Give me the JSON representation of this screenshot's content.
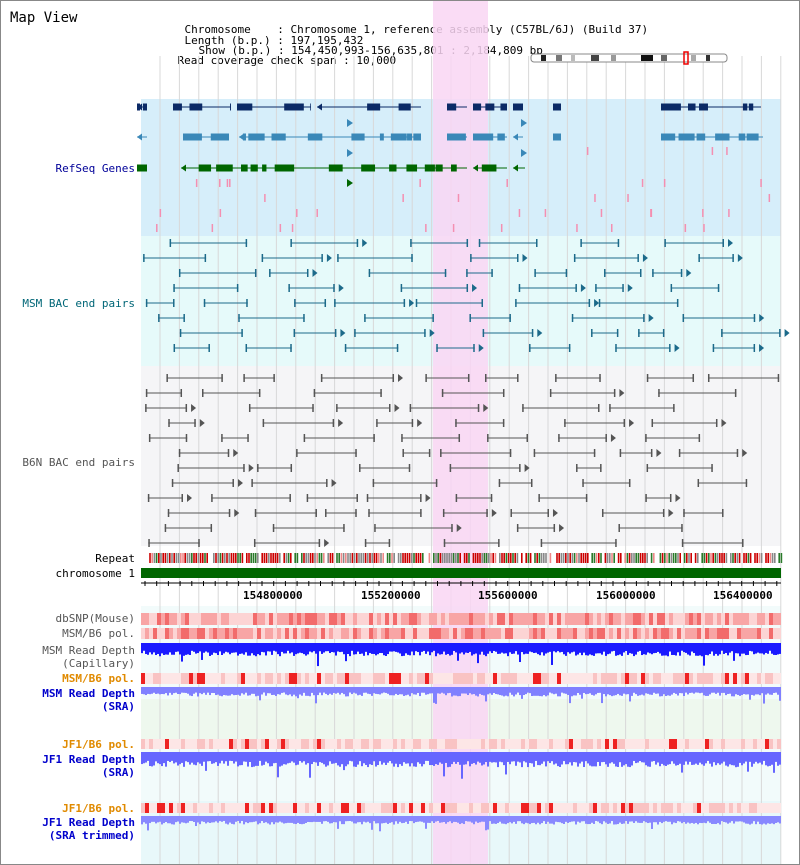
{
  "page": {
    "title": "Map View"
  },
  "info": {
    "chromosome_label": "Chromosome",
    "chromosome_value": "Chromosome 1, reference assembly (C57BL/6J) (Build 37)",
    "length_label": "Length (b.p.)",
    "length_value": "197,195,432",
    "show_label": "Show (b.p.)",
    "show_value": "154,450,993-156,635,801 : 2,184,809 bp",
    "coverage_label": "Read coverage check span",
    "coverage_value": "10,000"
  },
  "tracks": {
    "refseq": "RefSeq Genes",
    "msm_bac": "MSM BAC end pairs",
    "b6n_bac": "B6N BAC end pairs",
    "repeat": "Repeat",
    "chromosome": "chromosome 1",
    "dbsnp": "dbSNP(Mouse)",
    "msm_b6_pol_1": "MSM/B6 pol.",
    "msm_depth_cap_1": "MSM Read Depth",
    "msm_depth_cap_2": "(Capillary)",
    "msm_b6_pol_2": "MSM/B6 pol.",
    "msm_depth_sra_1": "MSM Read Depth",
    "msm_depth_sra_2": "(SRA)",
    "jf1_b6_pol_1": "JF1/B6 pol.",
    "jf1_depth_sra_1": "JF1 Read Depth",
    "jf1_depth_sra_2": "(SRA)",
    "jf1_b6_pol_2": "JF1/B6 pol.",
    "jf1_depth_trim_1": "JF1 Read Depth",
    "jf1_depth_trim_2": "(SRA trimmed)"
  },
  "ruler": {
    "ticks": [
      "154800000",
      "155200000",
      "155600000",
      "156000000",
      "156400000"
    ]
  },
  "colors": {
    "highlight": "#f9d6f3",
    "refseq_bg": "#d6eefa",
    "msm_bg": "#e6fafa",
    "gene_dark": "#0b2a66",
    "gene_mid": "#3a88b8",
    "gene_green": "#006600",
    "msm_pair": "#1c6a8a",
    "b6n_pair": "#555555",
    "label_refseq": "#000099",
    "label_msm": "#006677",
    "label_pol": "#e08a00",
    "label_depth": "#0000cc"
  }
}
